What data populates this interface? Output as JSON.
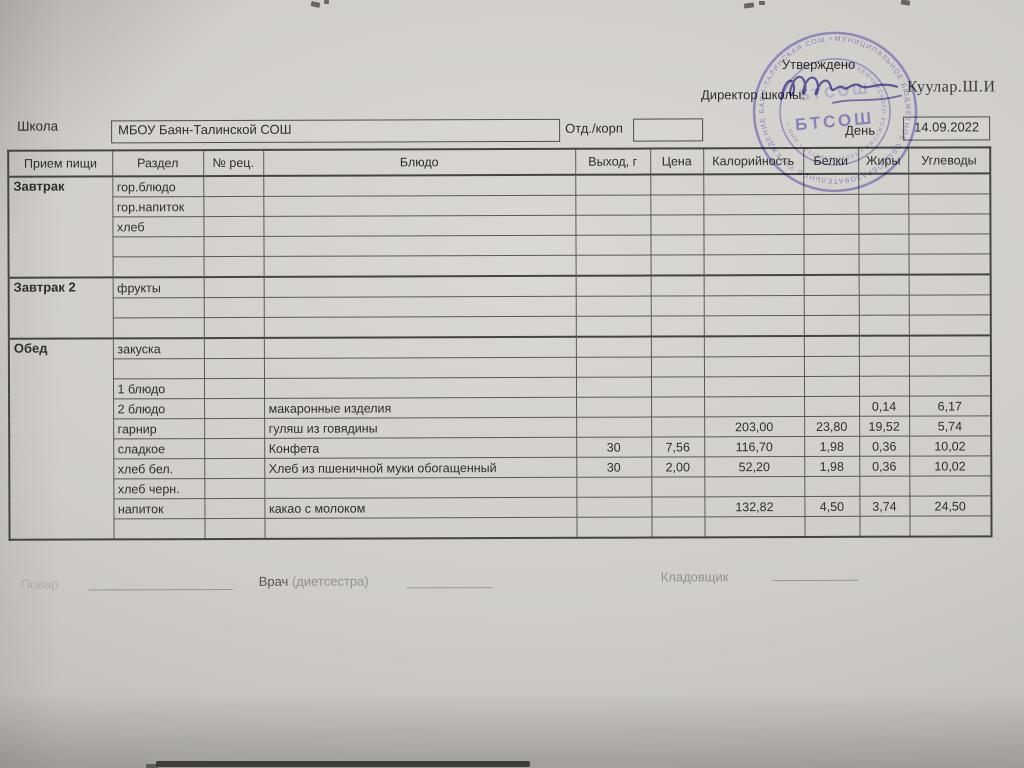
{
  "photo": {
    "paper_color": "#d2cfcb",
    "line_color": "#5a5957",
    "ink_color": "#2f2e2d",
    "stamp_color": "#6b5cab",
    "signature_color": "#4a3f92"
  },
  "header": {
    "approved": "Утверждено",
    "director_label": "Директор школы:",
    "director_name": "Куулар.Ш.И",
    "school_label": "Школа",
    "school_value": "МБОУ Баян-Талинской СОШ",
    "dept_label": "Отд./корп",
    "dept_value": "",
    "day_label": "День",
    "day_value": "14.09.2022"
  },
  "stamp": {
    "center": "БТСОШ",
    "ring_outer": "МУНИЦИПАЛЬНОЕ БЮДЖЕТНОЕ ОБЩЕОБРАЗОВАТЕЛЬНОЕ УЧРЕЖДЕНИЕ БАЯН-ТАЛИНСКАЯ СОШ •",
    "ring_inner": "ДЗУН-ХЕМЧИКСКОГО КОЖУУНА • 1021700565710 • ИНН •"
  },
  "table": {
    "columns": [
      "Прием пищи",
      "Раздел",
      "№ рец.",
      "Блюдо",
      "Выход, г",
      "Цена",
      "Калорийность",
      "Белки",
      "Жиры",
      "Углеводы"
    ],
    "sections": [
      {
        "meal": "Завтрак",
        "rows": [
          {
            "razdel": "гор.блюдо",
            "recipe": "",
            "dish": "",
            "out": "",
            "price": "",
            "kcal": "",
            "protein": "",
            "fat": "",
            "carbs": ""
          },
          {
            "razdel": "гор.напиток",
            "recipe": "",
            "dish": "",
            "out": "",
            "price": "",
            "kcal": "",
            "protein": "",
            "fat": "",
            "carbs": ""
          },
          {
            "razdel": "хлеб",
            "recipe": "",
            "dish": "",
            "out": "",
            "price": "",
            "kcal": "",
            "protein": "",
            "fat": "",
            "carbs": ""
          },
          {
            "razdel": "",
            "recipe": "",
            "dish": "",
            "out": "",
            "price": "",
            "kcal": "",
            "protein": "",
            "fat": "",
            "carbs": ""
          },
          {
            "razdel": "",
            "recipe": "",
            "dish": "",
            "out": "",
            "price": "",
            "kcal": "",
            "protein": "",
            "fat": "",
            "carbs": ""
          }
        ]
      },
      {
        "meal": "Завтрак 2",
        "rows": [
          {
            "razdel": "фрукты",
            "recipe": "",
            "dish": "",
            "out": "",
            "price": "",
            "kcal": "",
            "protein": "",
            "fat": "",
            "carbs": ""
          },
          {
            "razdel": "",
            "recipe": "",
            "dish": "",
            "out": "",
            "price": "",
            "kcal": "",
            "protein": "",
            "fat": "",
            "carbs": ""
          },
          {
            "razdel": "",
            "recipe": "",
            "dish": "",
            "out": "",
            "price": "",
            "kcal": "",
            "protein": "",
            "fat": "",
            "carbs": ""
          }
        ]
      },
      {
        "meal": "Обед",
        "rows": [
          {
            "razdel": "закуска",
            "recipe": "",
            "dish": "",
            "out": "",
            "price": "",
            "kcal": "",
            "protein": "",
            "fat": "",
            "carbs": ""
          },
          {
            "razdel": "",
            "recipe": "",
            "dish": "",
            "out": "",
            "price": "",
            "kcal": "",
            "protein": "",
            "fat": "",
            "carbs": ""
          },
          {
            "razdel": "1 блюдо",
            "recipe": "",
            "dish": "",
            "out": "",
            "price": "",
            "kcal": "",
            "protein": "",
            "fat": "",
            "carbs": ""
          },
          {
            "razdel": "2 блюдо",
            "recipe": "",
            "dish": "макаронные изделия",
            "out": "",
            "price": "",
            "kcal": "",
            "protein": "",
            "fat": "0,14",
            "carbs": "6,17"
          },
          {
            "razdel": "гарнир",
            "recipe": "",
            "dish": "гуляш из говядины",
            "out": "",
            "price": "",
            "kcal": "203,00",
            "protein": "23,80",
            "fat": "19,52",
            "carbs": "5,74"
          },
          {
            "razdel": "сладкое",
            "recipe": "",
            "dish": "Конфета",
            "out": "30",
            "price": "7,56",
            "kcal": "116,70",
            "protein": "1,98",
            "fat": "0,36",
            "carbs": "10,02"
          },
          {
            "razdel": "хлеб бел.",
            "recipe": "",
            "dish": "Хлеб из пшеничной муки обогащенный",
            "out": "30",
            "price": "2,00",
            "kcal": "52,20",
            "protein": "1,98",
            "fat": "0,36",
            "carbs": "10,02"
          },
          {
            "razdel": "хлеб черн.",
            "recipe": "",
            "dish": "",
            "out": "",
            "price": "",
            "kcal": "",
            "protein": "",
            "fat": "",
            "carbs": ""
          },
          {
            "razdel": "напиток",
            "recipe": "",
            "dish": "какао с молоком",
            "out": "",
            "price": "",
            "kcal": "132,82",
            "protein": "4,50",
            "fat": "3,74",
            "carbs": "24,50"
          },
          {
            "razdel": "",
            "recipe": "",
            "dish": "",
            "out": "",
            "price": "",
            "kcal": "",
            "protein": "",
            "fat": "",
            "carbs": ""
          }
        ]
      }
    ]
  },
  "footer": {
    "cook_label": "Повар",
    "doctor_label": "Врач",
    "doctor_label_faint": "(диетсестра)",
    "storekeeper_label": "Кладовщик"
  }
}
